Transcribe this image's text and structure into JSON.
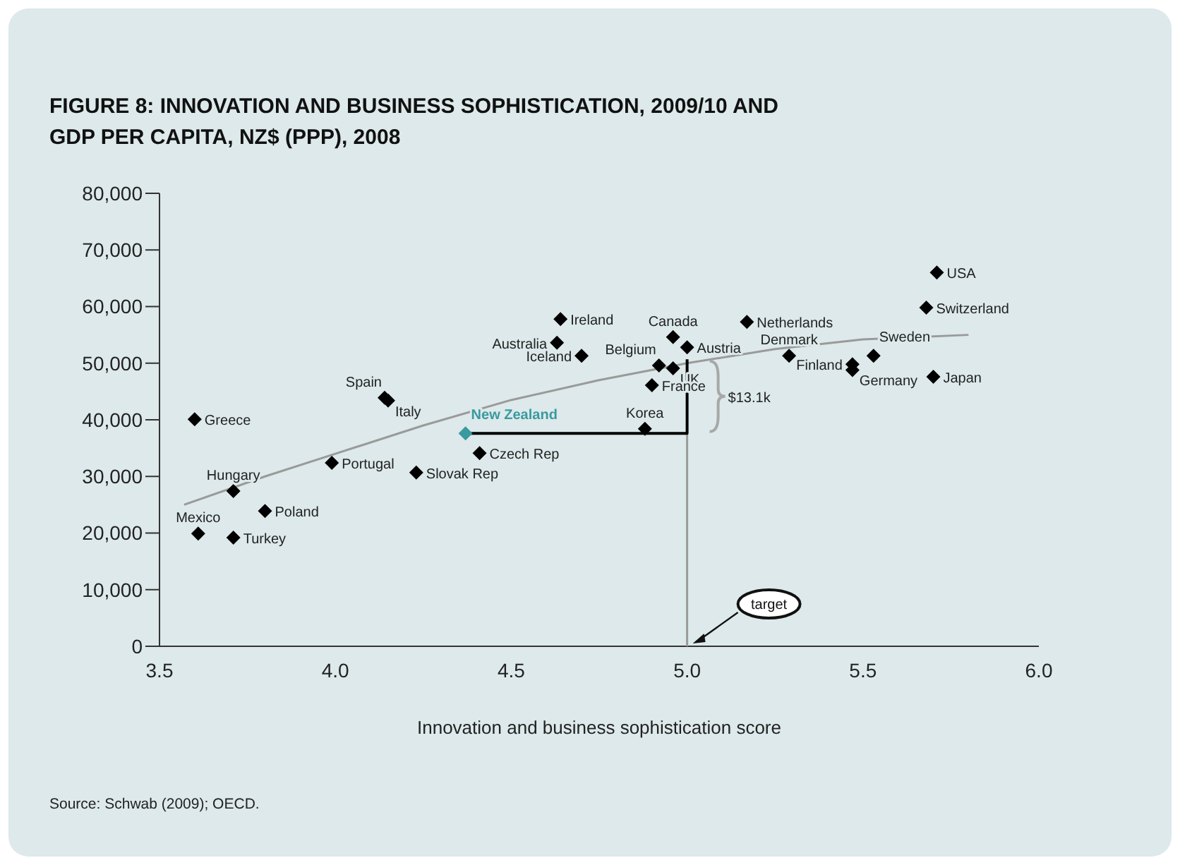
{
  "chart_data": {
    "type": "scatter",
    "title": "FIGURE 8: INNOVATION AND BUSINESS SOPHISTICATION, 2009/10 AND GDP PER CAPITA, NZ$ (PPP), 2008",
    "xlabel": "Innovation and business sophistication score",
    "marker": "diamond",
    "xlim": [
      3.5,
      6.0
    ],
    "xticks": [
      3.5,
      {
        "value": 4,
        "label": "4.0"
      },
      4.5,
      {
        "value": 5,
        "label": "5.0"
      },
      5.5,
      {
        "value": 6,
        "label": "6.0"
      }
    ],
    "ylim": [
      0,
      80000
    ],
    "yticks": [
      0,
      {
        "value": 10000,
        "label": "10,000"
      },
      {
        "value": 20000,
        "label": "20,000"
      },
      {
        "value": 30000,
        "label": "30,000"
      },
      {
        "value": 40000,
        "label": "40,000"
      },
      {
        "value": 50000,
        "label": "50,000"
      },
      {
        "value": 60000,
        "label": "60,000"
      },
      {
        "value": 70000,
        "label": "70,000"
      },
      {
        "value": 80000,
        "label": "80,000"
      }
    ],
    "series": [
      {
        "name": "Greece",
        "color": "#000000",
        "x": [
          3.6
        ],
        "values": [
          40100
        ]
      },
      {
        "name": "Mexico",
        "color": "#000000",
        "x": [
          3.61
        ],
        "values": [
          19900
        ]
      },
      {
        "name": "Turkey",
        "color": "#000000",
        "x": [
          3.71
        ],
        "values": [
          19200
        ]
      },
      {
        "name": "Hungary",
        "color": "#000000",
        "x": [
          3.71
        ],
        "values": [
          27400
        ]
      },
      {
        "name": "Poland",
        "color": "#000000",
        "x": [
          3.8
        ],
        "values": [
          23900
        ]
      },
      {
        "name": "Portugal",
        "color": "#000000",
        "x": [
          3.99
        ],
        "values": [
          32400
        ]
      },
      {
        "name": "Spain",
        "color": "#000000",
        "x": [
          4.14
        ],
        "values": [
          43900
        ]
      },
      {
        "name": "Italy",
        "color": "#000000",
        "x": [
          4.15
        ],
        "values": [
          43400
        ]
      },
      {
        "name": "Slovak Rep",
        "color": "#000000",
        "x": [
          4.23
        ],
        "values": [
          30700
        ]
      },
      {
        "name": "Czech Rep",
        "color": "#000000",
        "x": [
          4.41
        ],
        "values": [
          34100
        ]
      },
      {
        "name": "New Zealand",
        "color": "#3a9aa0",
        "x": [
          4.37
        ],
        "values": [
          37600
        ]
      },
      {
        "name": "Korea",
        "color": "#000000",
        "x": [
          4.88
        ],
        "values": [
          38400
        ]
      },
      {
        "name": "Ireland",
        "color": "#000000",
        "x": [
          4.64
        ],
        "values": [
          57800
        ]
      },
      {
        "name": "Australia",
        "color": "#000000",
        "x": [
          4.63
        ],
        "values": [
          53600
        ]
      },
      {
        "name": "Iceland",
        "color": "#000000",
        "x": [
          4.7
        ],
        "values": [
          51300
        ]
      },
      {
        "name": "Belgium",
        "color": "#000000",
        "x": [
          4.92
        ],
        "values": [
          49600
        ]
      },
      {
        "name": "UK",
        "color": "#000000",
        "x": [
          4.96
        ],
        "values": [
          49100
        ]
      },
      {
        "name": "France",
        "color": "#000000",
        "x": [
          4.9
        ],
        "values": [
          46100
        ]
      },
      {
        "name": "Canada",
        "color": "#000000",
        "x": [
          4.96
        ],
        "values": [
          54600
        ]
      },
      {
        "name": "Austria",
        "color": "#000000",
        "x": [
          5.0
        ],
        "values": [
          52800
        ]
      },
      {
        "name": "Netherlands",
        "color": "#000000",
        "x": [
          5.17
        ],
        "values": [
          57300
        ]
      },
      {
        "name": "Denmark",
        "color": "#000000",
        "x": [
          5.29
        ],
        "values": [
          51300
        ]
      },
      {
        "name": "Finland",
        "color": "#000000",
        "x": [
          5.47
        ],
        "values": [
          49800
        ]
      },
      {
        "name": "Germany",
        "color": "#000000",
        "x": [
          5.47
        ],
        "values": [
          48800
        ]
      },
      {
        "name": "Sweden",
        "color": "#000000",
        "x": [
          5.53
        ],
        "values": [
          51300
        ]
      },
      {
        "name": "Japan",
        "color": "#000000",
        "x": [
          5.7
        ],
        "values": [
          47600
        ]
      },
      {
        "name": "Switzerland",
        "color": "#000000",
        "x": [
          5.68
        ],
        "values": [
          59800
        ]
      },
      {
        "name": "USA",
        "color": "#000000",
        "x": [
          5.71
        ],
        "values": [
          66000
        ]
      },
      {
        "type": "line",
        "marker": "none",
        "color": "#9a9a9a",
        "x": [
          3.57,
          3.8,
          4.0,
          4.25,
          4.5,
          4.75,
          5.0,
          5.25,
          5.5,
          5.8
        ],
        "values": [
          25000,
          30000,
          34000,
          39000,
          43500,
          47000,
          50000,
          52500,
          54200,
          55000
        ]
      },
      {
        "type": "line",
        "marker": "none",
        "color": "#9a9a9a",
        "x": [
          5.0,
          5.0
        ],
        "values": [
          0,
          37600
        ]
      },
      {
        "type": "line",
        "marker": "none",
        "color": "#000000",
        "x": [
          4.37,
          5.0,
          5.0
        ],
        "values": [
          37600,
          37600,
          50700
        ]
      }
    ],
    "annotations": [
      {
        "text": "target",
        "x": 5.0,
        "y": 0
      },
      {
        "text": "$13.1k",
        "x": 5.0,
        "y": 44150
      },
      "Source: Schwab (2009); OECD."
    ]
  }
}
